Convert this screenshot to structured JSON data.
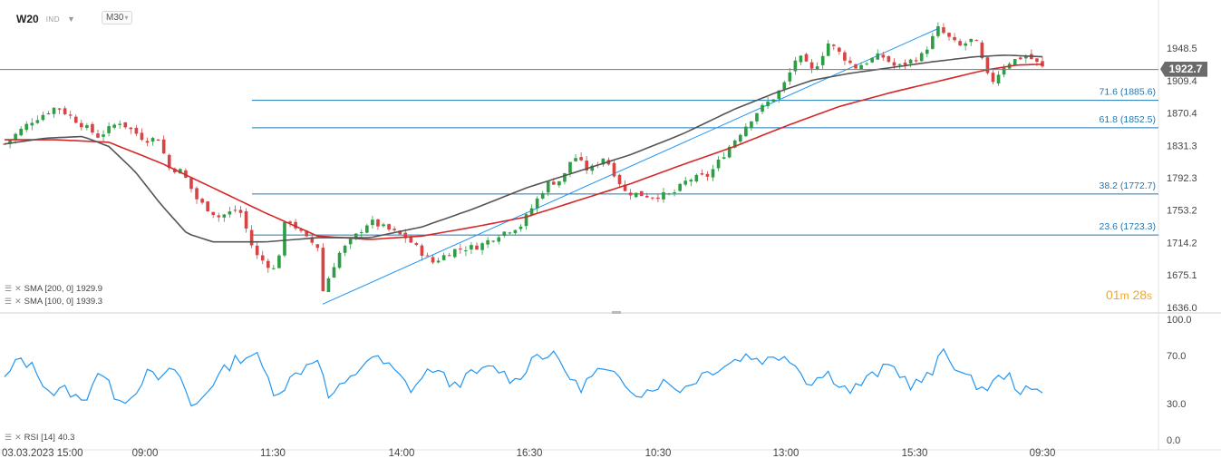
{
  "header": {
    "symbol": "W20",
    "exchange": "IND",
    "timeframe": "M30"
  },
  "indicators": {
    "sma200": "SMA [200, 0]",
    "sma200_value": "1929.9",
    "sma100": "SMA [100, 0]",
    "sma100_value": "1939.3",
    "rsi": "RSI [14]",
    "rsi_value": "40.3"
  },
  "timer": {
    "minutes": "01",
    "m": "m",
    "seconds": "28",
    "s": "s"
  },
  "colors": {
    "sma200": "#d62728",
    "sma100": "#555555",
    "fib": "#1f77b4",
    "trend": "#2196f3",
    "rsi": "#2196f3",
    "candle_up": "#2e9e44",
    "candle_down": "#d64545",
    "price_tag": "#6b6b6b",
    "timer": "#f5a623"
  },
  "chart_data": {
    "type": "candlestick",
    "title": "",
    "current_price": 1922.7,
    "price_axis": {
      "range": [
        1636.0,
        1970.0
      ],
      "ticks": [
        "1948.5",
        "1909.4",
        "1870.4",
        "1831.3",
        "1792.3",
        "1753.2",
        "1714.2",
        "1675.1",
        "1636.0"
      ]
    },
    "time_axis": {
      "labels": [
        "03.03.2023  15:00",
        "09:00",
        "11:30",
        "14:00",
        "16:30",
        "10:30",
        "13:00",
        "15:30",
        "09:30"
      ],
      "total_bars": 190
    },
    "close_anchors": [
      [
        0,
        1833
      ],
      [
        5,
        1860
      ],
      [
        10,
        1878
      ],
      [
        18,
        1842
      ],
      [
        22,
        1860
      ],
      [
        27,
        1838
      ],
      [
        30,
        1840
      ],
      [
        31,
        1805
      ],
      [
        34,
        1800
      ],
      [
        37,
        1765
      ],
      [
        41,
        1745
      ],
      [
        45,
        1755
      ],
      [
        48,
        1700
      ],
      [
        52,
        1680
      ],
      [
        54,
        1745
      ],
      [
        58,
        1718
      ],
      [
        60,
        1710
      ],
      [
        61,
        1655
      ],
      [
        64,
        1700
      ],
      [
        70,
        1740
      ],
      [
        77,
        1720
      ],
      [
        82,
        1690
      ],
      [
        86,
        1705
      ],
      [
        91,
        1710
      ],
      [
        95,
        1725
      ],
      [
        99,
        1735
      ],
      [
        104,
        1785
      ],
      [
        107,
        1790
      ],
      [
        109,
        1820
      ],
      [
        112,
        1800
      ],
      [
        115,
        1818
      ],
      [
        119,
        1775
      ],
      [
        124,
        1770
      ],
      [
        128,
        1772
      ],
      [
        131,
        1790
      ],
      [
        135,
        1795
      ],
      [
        139,
        1830
      ],
      [
        144,
        1870
      ],
      [
        148,
        1892
      ],
      [
        150,
        1910
      ],
      [
        152,
        1940
      ],
      [
        155,
        1920
      ],
      [
        158,
        1955
      ],
      [
        163,
        1925
      ],
      [
        168,
        1940
      ],
      [
        171,
        1925
      ],
      [
        176,
        1940
      ],
      [
        179,
        1972
      ],
      [
        183,
        1950
      ],
      [
        186,
        1960
      ],
      [
        189,
        1905
      ],
      [
        192,
        1930
      ],
      [
        196,
        1940
      ],
      [
        199,
        1925
      ]
    ],
    "sma100_anchors": [
      [
        0,
        1833
      ],
      [
        8,
        1840
      ],
      [
        15,
        1842
      ],
      [
        20,
        1830
      ],
      [
        25,
        1800
      ],
      [
        30,
        1760
      ],
      [
        35,
        1725
      ],
      [
        40,
        1715
      ],
      [
        50,
        1715
      ],
      [
        60,
        1720
      ],
      [
        70,
        1720
      ],
      [
        80,
        1733
      ],
      [
        90,
        1755
      ],
      [
        100,
        1780
      ],
      [
        110,
        1800
      ],
      [
        120,
        1820
      ],
      [
        130,
        1845
      ],
      [
        140,
        1875
      ],
      [
        148,
        1895
      ],
      [
        155,
        1910
      ],
      [
        162,
        1918
      ],
      [
        170,
        1925
      ],
      [
        178,
        1932
      ],
      [
        186,
        1938
      ],
      [
        192,
        1940
      ],
      [
        199,
        1938
      ]
    ],
    "sma200_anchors": [
      [
        0,
        1838
      ],
      [
        10,
        1838
      ],
      [
        20,
        1835
      ],
      [
        30,
        1810
      ],
      [
        40,
        1780
      ],
      [
        50,
        1750
      ],
      [
        60,
        1722
      ],
      [
        70,
        1718
      ],
      [
        80,
        1722
      ],
      [
        90,
        1733
      ],
      [
        100,
        1745
      ],
      [
        110,
        1765
      ],
      [
        120,
        1785
      ],
      [
        130,
        1808
      ],
      [
        140,
        1830
      ],
      [
        150,
        1855
      ],
      [
        160,
        1878
      ],
      [
        170,
        1895
      ],
      [
        180,
        1910
      ],
      [
        188,
        1922
      ],
      [
        194,
        1928
      ],
      [
        199,
        1929
      ]
    ],
    "fibonacci": [
      {
        "label": "71.6 (1885.6)",
        "value": 1885.6
      },
      {
        "label": "61.8 (1852.5)",
        "value": 1852.5
      },
      {
        "label": "38.2 (1772.7)",
        "value": 1772.7
      },
      {
        "label": "23.6 (1723.3)",
        "value": 1723.3
      }
    ],
    "trendline": {
      "from": [
        61,
        1640
      ],
      "to": [
        179,
        1972
      ]
    },
    "rsi": {
      "axis_ticks": [
        "100.0",
        "70.0",
        "30.0",
        "0.0"
      ],
      "range": [
        0,
        100
      ],
      "anchors": [
        [
          0,
          50
        ],
        [
          3,
          68
        ],
        [
          6,
          58
        ],
        [
          9,
          38
        ],
        [
          12,
          42
        ],
        [
          15,
          30
        ],
        [
          18,
          58
        ],
        [
          21,
          38
        ],
        [
          24,
          33
        ],
        [
          27,
          55
        ],
        [
          30,
          50
        ],
        [
          33,
          60
        ],
        [
          36,
          25
        ],
        [
          40,
          48
        ],
        [
          44,
          66
        ],
        [
          48,
          72
        ],
        [
          52,
          38
        ],
        [
          56,
          55
        ],
        [
          60,
          70
        ],
        [
          62,
          35
        ],
        [
          66,
          48
        ],
        [
          70,
          70
        ],
        [
          74,
          60
        ],
        [
          78,
          42
        ],
        [
          82,
          60
        ],
        [
          86,
          45
        ],
        [
          90,
          55
        ],
        [
          94,
          60
        ],
        [
          98,
          48
        ],
        [
          102,
          72
        ],
        [
          106,
          68
        ],
        [
          110,
          42
        ],
        [
          114,
          58
        ],
        [
          118,
          50
        ],
        [
          122,
          38
        ],
        [
          126,
          48
        ],
        [
          130,
          42
        ],
        [
          134,
          55
        ],
        [
          138,
          62
        ],
        [
          142,
          70
        ],
        [
          146,
          66
        ],
        [
          148,
          68
        ],
        [
          150,
          72
        ],
        [
          154,
          48
        ],
        [
          158,
          55
        ],
        [
          162,
          40
        ],
        [
          166,
          52
        ],
        [
          170,
          62
        ],
        [
          174,
          45
        ],
        [
          178,
          55
        ],
        [
          180,
          75
        ],
        [
          184,
          52
        ],
        [
          188,
          42
        ],
        [
          192,
          55
        ],
        [
          195,
          40
        ],
        [
          199,
          40
        ]
      ]
    }
  }
}
